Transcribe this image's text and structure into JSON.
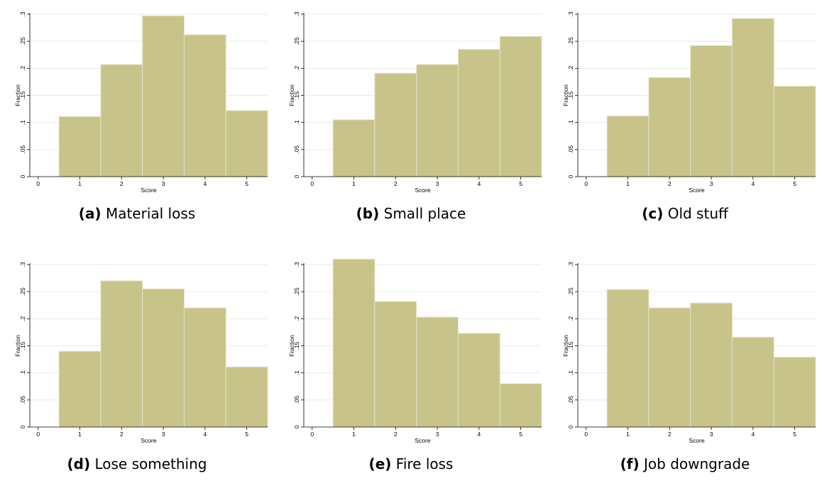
{
  "colors": {
    "bar": "#c8c389",
    "bar_edge": "#e6e3c8",
    "grid": "#eaeaea",
    "axis": "#000000"
  },
  "chart_data": [
    {
      "type": "bar",
      "panel_label": "(a)",
      "caption": "Material loss",
      "xlabel": "Score",
      "ylabel": "Fraction",
      "x_ticks": [
        "0",
        "1",
        "2",
        "3",
        "4",
        "5"
      ],
      "y_ticks": [
        "0",
        ".05",
        ".1",
        ".15",
        ".2",
        ".25",
        ".3"
      ],
      "xlim": [
        -0.2,
        5.5
      ],
      "ylim": [
        0,
        0.3
      ],
      "categories": [
        "1",
        "2",
        "3",
        "4",
        "5"
      ],
      "values": [
        0.111,
        0.207,
        0.297,
        0.262,
        0.122
      ]
    },
    {
      "type": "bar",
      "panel_label": "(b)",
      "caption": "Small place",
      "xlabel": "Score",
      "ylabel": "Fraction",
      "x_ticks": [
        "0",
        "1",
        "2",
        "3",
        "4",
        "5"
      ],
      "y_ticks": [
        "0",
        ".05",
        ".1",
        ".15",
        ".2",
        ".25",
        ".3"
      ],
      "xlim": [
        -0.2,
        5.5
      ],
      "ylim": [
        0,
        0.3
      ],
      "categories": [
        "1",
        "2",
        "3",
        "4",
        "5"
      ],
      "values": [
        0.105,
        0.191,
        0.207,
        0.235,
        0.259
      ]
    },
    {
      "type": "bar",
      "panel_label": "(c)",
      "caption": "Old stuff",
      "xlabel": "Score",
      "ylabel": "Fraction",
      "x_ticks": [
        "0",
        "1",
        "2",
        "3",
        "4",
        "5"
      ],
      "y_ticks": [
        "0",
        ".05",
        ".1",
        ".15",
        ".2",
        ".25",
        ".3"
      ],
      "xlim": [
        -0.2,
        5.5
      ],
      "ylim": [
        0,
        0.3
      ],
      "categories": [
        "1",
        "2",
        "3",
        "4",
        "5"
      ],
      "values": [
        0.112,
        0.183,
        0.242,
        0.292,
        0.167
      ]
    },
    {
      "type": "bar",
      "panel_label": "(d)",
      "caption": "Lose something",
      "xlabel": "Score",
      "ylabel": "Fraction",
      "x_ticks": [
        "0",
        "1",
        "2",
        "3",
        "4",
        "5"
      ],
      "y_ticks": [
        "0",
        ".05",
        ".1",
        ".15",
        ".2",
        ".25",
        ".3"
      ],
      "xlim": [
        -0.2,
        5.5
      ],
      "ylim": [
        0,
        0.3
      ],
      "categories": [
        "1",
        "2",
        "3",
        "4",
        "5"
      ],
      "values": [
        0.14,
        0.27,
        0.255,
        0.22,
        0.111
      ]
    },
    {
      "type": "bar",
      "panel_label": "(e)",
      "caption": "Fire loss",
      "xlabel": "Score",
      "ylabel": "Fraction",
      "x_ticks": [
        "0",
        "1",
        "2",
        "3",
        "4",
        "5"
      ],
      "y_ticks": [
        "0",
        ".05",
        ".1",
        ".15",
        ".2",
        ".25",
        ".3"
      ],
      "xlim": [
        -0.2,
        5.5
      ],
      "ylim": [
        0,
        0.3
      ],
      "categories": [
        "1",
        "2",
        "3",
        "4",
        "5"
      ],
      "values": [
        0.31,
        0.232,
        0.203,
        0.173,
        0.08
      ]
    },
    {
      "type": "bar",
      "panel_label": "(f)",
      "caption": "Job downgrade",
      "xlabel": "Score",
      "ylabel": "Fraction",
      "x_ticks": [
        "0",
        "1",
        "2",
        "3",
        "4",
        "5"
      ],
      "y_ticks": [
        "0",
        ".05",
        ".1",
        ".15",
        ".2",
        ".25",
        ".3"
      ],
      "xlim": [
        -0.2,
        5.5
      ],
      "ylim": [
        0,
        0.3
      ],
      "categories": [
        "1",
        "2",
        "3",
        "4",
        "5"
      ],
      "values": [
        0.254,
        0.22,
        0.229,
        0.166,
        0.129
      ]
    }
  ]
}
